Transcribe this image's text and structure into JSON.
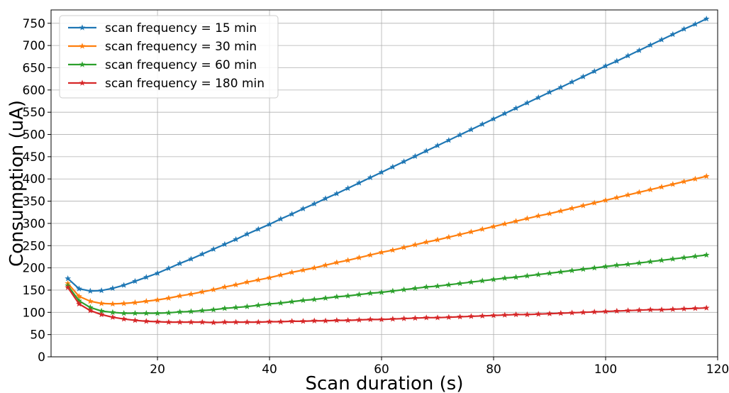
{
  "chart_data": {
    "type": "line",
    "title": "",
    "xlabel": "Scan duration (s)",
    "ylabel": "Consumption (uA)",
    "xlim": [
      1,
      120
    ],
    "ylim": [
      0,
      780
    ],
    "xticks": [
      20,
      40,
      60,
      80,
      100,
      120
    ],
    "yticks": [
      0,
      50,
      100,
      150,
      200,
      250,
      300,
      350,
      400,
      450,
      500,
      550,
      600,
      650,
      700,
      750
    ],
    "grid": true,
    "legend_position": "top-left",
    "marker": "star",
    "x": [
      4,
      6,
      8,
      10,
      12,
      14,
      16,
      18,
      20,
      22,
      24,
      26,
      28,
      30,
      32,
      34,
      36,
      38,
      40,
      42,
      44,
      46,
      48,
      50,
      52,
      54,
      56,
      58,
      60,
      62,
      64,
      66,
      68,
      70,
      72,
      74,
      76,
      78,
      80,
      82,
      84,
      86,
      88,
      90,
      92,
      94,
      96,
      98,
      100,
      102,
      104,
      106,
      108,
      110,
      112,
      114,
      116,
      118
    ],
    "series": [
      {
        "name": "scan frequency = 15 min",
        "color": "#1f77b4",
        "values": [
          176,
          153,
          148,
          149,
          154,
          161,
          170,
          179,
          188,
          199,
          210,
          220,
          231,
          242,
          253,
          264,
          276,
          287,
          298,
          310,
          321,
          333,
          344,
          356,
          367,
          379,
          391,
          403,
          415,
          427,
          439,
          451,
          463,
          475,
          487,
          499,
          511,
          523,
          535,
          547,
          559,
          571,
          583,
          595,
          606,
          618,
          630,
          642,
          654,
          665,
          677,
          689,
          701,
          713,
          725,
          737,
          748,
          760
        ]
      },
      {
        "name": "scan frequency = 30 min",
        "color": "#ff7f0e",
        "values": [
          165,
          136,
          125,
          120,
          119,
          120,
          122,
          125,
          128,
          132,
          137,
          141,
          146,
          151,
          157,
          162,
          168,
          173,
          178,
          184,
          190,
          195,
          200,
          206,
          212,
          217,
          223,
          229,
          235,
          240,
          246,
          252,
          258,
          263,
          269,
          275,
          281,
          287,
          293,
          299,
          305,
          311,
          317,
          322,
          328,
          334,
          340,
          346,
          352,
          358,
          364,
          370,
          376,
          382,
          388,
          394,
          400,
          406
        ]
      },
      {
        "name": "scan frequency = 60 min",
        "color": "#2ca02c",
        "values": [
          160,
          126,
          111,
          103,
          100,
          98,
          98,
          98,
          98,
          99,
          101,
          102,
          104,
          106,
          109,
          111,
          113,
          116,
          119,
          121,
          124,
          127,
          129,
          132,
          135,
          137,
          140,
          143,
          145,
          148,
          151,
          154,
          157,
          159,
          162,
          165,
          168,
          171,
          174,
          177,
          179,
          182,
          185,
          188,
          191,
          194,
          197,
          200,
          203,
          206,
          208,
          211,
          214,
          217,
          220,
          223,
          226,
          229
        ]
      },
      {
        "name": "scan frequency = 180 min",
        "color": "#d62728",
        "values": [
          156,
          119,
          104,
          95,
          89,
          85,
          82,
          80,
          79,
          78,
          78,
          78,
          78,
          77,
          78,
          78,
          78,
          78,
          79,
          79,
          80,
          80,
          81,
          81,
          82,
          82,
          83,
          84,
          84,
          85,
          86,
          87,
          88,
          88,
          89,
          90,
          91,
          92,
          93,
          94,
          95,
          95,
          96,
          97,
          98,
          99,
          100,
          101,
          102,
          103,
          104,
          105,
          106,
          106,
          107,
          108,
          109,
          110
        ]
      }
    ]
  }
}
